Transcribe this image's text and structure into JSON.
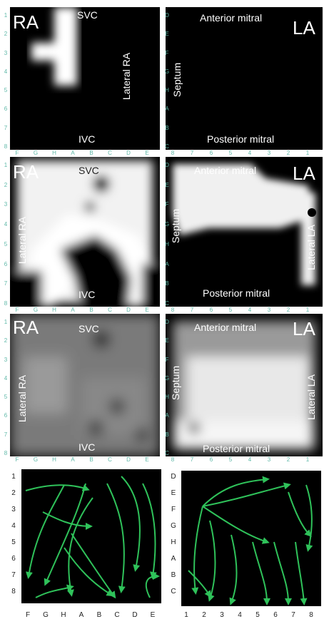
{
  "ra_label": "RA",
  "la_label": "LA",
  "svc": "SVC",
  "ivc": "IVC",
  "lateral_ra": "Lateral RA",
  "septum": "Septum",
  "lateral_la": "Lateral LA",
  "anterior_mitral": "Anterior mitral",
  "posterior_mitral": "Posterior mitral",
  "ra_rows": [
    "1",
    "2",
    "3",
    "4",
    "5",
    "6",
    "7",
    "8"
  ],
  "ra_cols": [
    "F",
    "G",
    "H",
    "A",
    "B",
    "C",
    "D",
    "E"
  ],
  "la_rows": [
    "D",
    "E",
    "F",
    "G",
    "H",
    "A",
    "B",
    "C"
  ],
  "la_cols": [
    "8",
    "7",
    "6",
    "5",
    "4",
    "3",
    "2",
    "1"
  ],
  "bottom_la_cols": [
    "1",
    "2",
    "3",
    "4",
    "5",
    "6",
    "7",
    "8"
  ],
  "arrow_color": "#2fc25a"
}
